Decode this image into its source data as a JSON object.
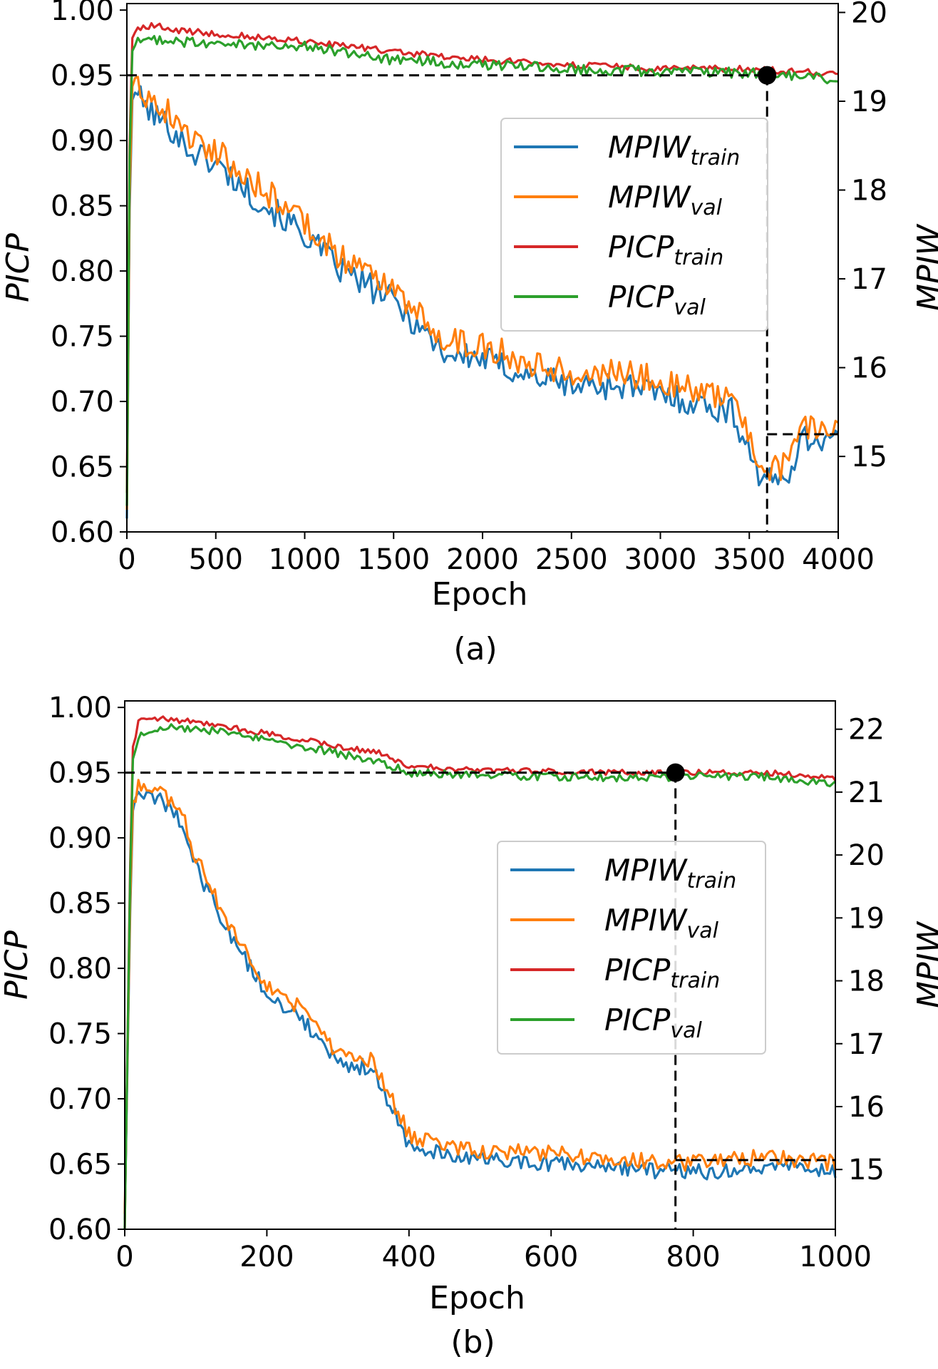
{
  "chart_data": [
    {
      "type": "line",
      "caption": "(a)",
      "xlabel": "Epoch",
      "ylabel_left": "PICP",
      "ylabel_right": "MPIW",
      "xlim": [
        0,
        4000
      ],
      "ylim_left": [
        0.6,
        1.005
      ],
      "ylim_right": [
        14.15,
        20.1
      ],
      "x_ticks": [
        "0",
        "500",
        "1000",
        "1500",
        "2000",
        "2500",
        "3000",
        "3500",
        "4000"
      ],
      "y_ticks_left": [
        "0.60",
        "0.65",
        "0.70",
        "0.75",
        "0.80",
        "0.85",
        "0.90",
        "0.95",
        "1.00"
      ],
      "y_ticks_right": [
        "15",
        "16",
        "17",
        "18",
        "19",
        "20"
      ],
      "grid": false,
      "legend_position": "center-right",
      "legend": [
        {
          "base": "MPIW",
          "sub": "train",
          "color": "#1f77b4"
        },
        {
          "base": "MPIW",
          "sub": "val",
          "color": "#ff7f0e"
        },
        {
          "base": "PICP",
          "sub": "train",
          "color": "#d62728"
        },
        {
          "base": "PICP",
          "sub": "val",
          "color": "#2ca02c"
        }
      ],
      "marker": {
        "epoch": 3600,
        "picp": 0.95,
        "mpiw": 15.25
      },
      "series": [
        {
          "name": "MPIW_train",
          "axis": "right",
          "color": "#1f77b4",
          "noise": 0.16,
          "x": [
            0,
            20,
            40,
            80,
            150,
            250,
            350,
            500,
            700,
            1000,
            1200,
            1500,
            1800,
            2000,
            2200,
            2500,
            2800,
            3000,
            3200,
            3400,
            3500,
            3550,
            3620,
            3700,
            3800,
            4000
          ],
          "values": [
            14.3,
            18.8,
            19.2,
            19.0,
            18.85,
            18.7,
            18.45,
            18.3,
            17.95,
            17.5,
            17.1,
            16.75,
            16.15,
            16.1,
            15.95,
            15.8,
            15.8,
            15.7,
            15.6,
            15.5,
            15.1,
            14.8,
            14.7,
            14.75,
            15.2,
            15.2
          ]
        },
        {
          "name": "MPIW_val",
          "axis": "right",
          "color": "#ff7f0e",
          "noise": 0.16,
          "x": [
            0,
            20,
            40,
            80,
            150,
            250,
            350,
            500,
            700,
            1000,
            1200,
            1500,
            1800,
            2000,
            2200,
            2500,
            2800,
            3000,
            3200,
            3400,
            3500,
            3550,
            3620,
            3700,
            3800,
            4000
          ],
          "values": [
            14.4,
            18.95,
            19.35,
            19.15,
            19.0,
            18.85,
            18.6,
            18.45,
            18.1,
            17.65,
            17.25,
            16.9,
            16.3,
            16.25,
            16.1,
            15.95,
            15.95,
            15.85,
            15.75,
            15.65,
            15.25,
            14.95,
            14.85,
            14.9,
            15.35,
            15.35
          ]
        },
        {
          "name": "PICP_train",
          "axis": "left",
          "color": "#d62728",
          "noise": 0.0025,
          "x": [
            0,
            20,
            50,
            150,
            300,
            500,
            1000,
            1500,
            2000,
            2500,
            3000,
            3500,
            4000
          ],
          "values": [
            0.63,
            0.975,
            0.985,
            0.988,
            0.984,
            0.982,
            0.976,
            0.968,
            0.962,
            0.958,
            0.955,
            0.955,
            0.951
          ]
        },
        {
          "name": "PICP_val",
          "axis": "left",
          "color": "#2ca02c",
          "noise": 0.004,
          "x": [
            0,
            20,
            50,
            150,
            300,
            500,
            1000,
            1500,
            2000,
            2500,
            3000,
            3500,
            4000
          ],
          "values": [
            0.62,
            0.965,
            0.975,
            0.978,
            0.976,
            0.974,
            0.972,
            0.962,
            0.958,
            0.955,
            0.953,
            0.952,
            0.946
          ]
        }
      ]
    },
    {
      "type": "line",
      "caption": "(b)",
      "xlabel": "Epoch",
      "ylabel_left": "PICP",
      "ylabel_right": "MPIW",
      "xlim": [
        0,
        1000
      ],
      "ylim_left": [
        0.6,
        1.005
      ],
      "ylim_right": [
        14.05,
        22.45
      ],
      "x_ticks": [
        "0",
        "200",
        "400",
        "600",
        "800",
        "1000"
      ],
      "y_ticks_left": [
        "0.60",
        "0.65",
        "0.70",
        "0.75",
        "0.80",
        "0.85",
        "0.90",
        "0.95",
        "1.00"
      ],
      "y_ticks_right": [
        "15",
        "16",
        "17",
        "18",
        "19",
        "20",
        "21",
        "22"
      ],
      "grid": false,
      "legend_position": "center-right",
      "legend": [
        {
          "base": "MPIW",
          "sub": "train",
          "color": "#1f77b4"
        },
        {
          "base": "MPIW",
          "sub": "val",
          "color": "#ff7f0e"
        },
        {
          "base": "PICP",
          "sub": "train",
          "color": "#d62728"
        },
        {
          "base": "PICP",
          "sub": "val",
          "color": "#2ca02c"
        }
      ],
      "marker": {
        "epoch": 775,
        "picp": 0.95,
        "mpiw": 15.15
      },
      "series": [
        {
          "name": "MPIW_train",
          "axis": "right",
          "color": "#1f77b4",
          "noise": 0.13,
          "x": [
            0,
            10,
            20,
            40,
            60,
            80,
            100,
            150,
            200,
            250,
            300,
            350,
            400,
            450,
            500,
            600,
            700,
            800,
            900,
            1000
          ],
          "values": [
            14.2,
            20.6,
            21.0,
            20.95,
            20.75,
            20.55,
            19.8,
            18.7,
            17.8,
            17.4,
            16.7,
            16.6,
            15.4,
            15.25,
            15.15,
            15.1,
            15.0,
            14.95,
            15.05,
            14.95
          ]
        },
        {
          "name": "MPIW_val",
          "axis": "right",
          "color": "#ff7f0e",
          "noise": 0.13,
          "x": [
            0,
            10,
            20,
            40,
            60,
            80,
            100,
            150,
            200,
            250,
            300,
            350,
            400,
            450,
            500,
            600,
            700,
            800,
            900,
            1000
          ],
          "values": [
            14.3,
            20.75,
            21.15,
            21.1,
            20.9,
            20.7,
            19.95,
            18.85,
            17.95,
            17.55,
            16.85,
            16.75,
            15.55,
            15.4,
            15.3,
            15.25,
            15.15,
            15.1,
            15.2,
            15.1
          ]
        },
        {
          "name": "PICP_train",
          "axis": "left",
          "color": "#d62728",
          "noise": 0.0022,
          "x": [
            0,
            10,
            20,
            50,
            100,
            200,
            300,
            360,
            400,
            500,
            600,
            700,
            800,
            900,
            1000
          ],
          "values": [
            0.6,
            0.965,
            0.99,
            0.991,
            0.989,
            0.98,
            0.97,
            0.965,
            0.955,
            0.952,
            0.951,
            0.95,
            0.95,
            0.95,
            0.946
          ]
        },
        {
          "name": "PICP_val",
          "axis": "left",
          "color": "#2ca02c",
          "noise": 0.003,
          "x": [
            0,
            10,
            20,
            50,
            100,
            200,
            300,
            360,
            400,
            500,
            600,
            700,
            800,
            900,
            1000
          ],
          "values": [
            0.6,
            0.955,
            0.98,
            0.985,
            0.984,
            0.975,
            0.965,
            0.958,
            0.95,
            0.948,
            0.947,
            0.946,
            0.947,
            0.947,
            0.941
          ]
        }
      ]
    }
  ]
}
